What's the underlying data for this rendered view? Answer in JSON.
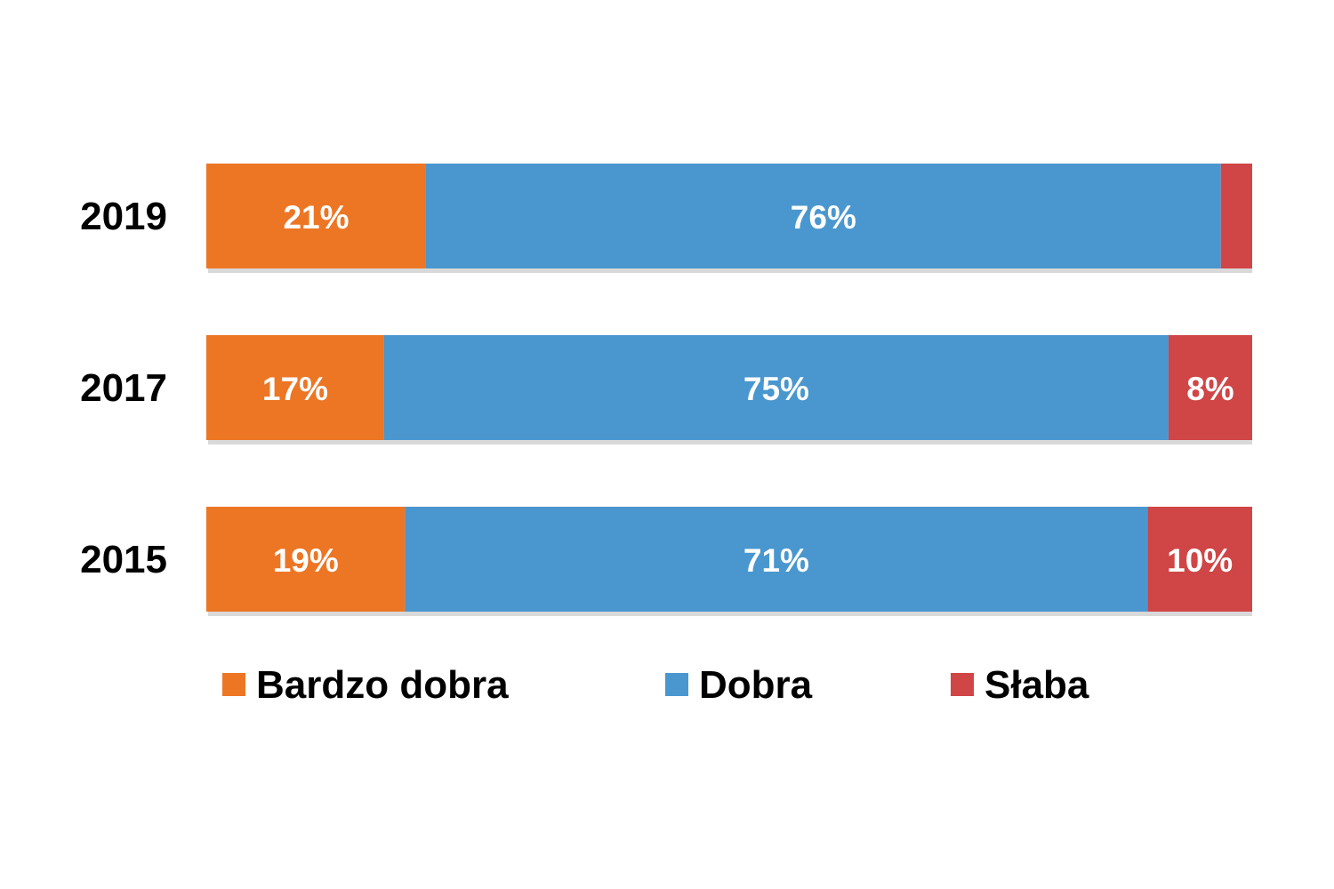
{
  "chart_data": {
    "type": "bar",
    "orientation": "horizontal",
    "stacked": true,
    "normalized_percent": true,
    "categories": [
      "2019",
      "2017",
      "2015"
    ],
    "series": [
      {
        "name": "Bardzo dobra",
        "color": "#ED7625",
        "values": [
          21,
          17,
          19
        ],
        "labels": [
          "21%",
          "17%",
          "19%"
        ]
      },
      {
        "name": "Dobra",
        "color": "#4A97CF",
        "values": [
          76,
          75,
          71
        ],
        "labels": [
          "76%",
          "75%",
          "71%"
        ]
      },
      {
        "name": "Słaba",
        "color": "#D04546",
        "values": [
          3,
          8,
          10
        ],
        "labels": [
          "",
          "8%",
          "10%"
        ]
      }
    ],
    "xlim": [
      0,
      100
    ],
    "grid": false,
    "legend_position": "bottom",
    "title": "",
    "xlabel": "",
    "ylabel": ""
  }
}
